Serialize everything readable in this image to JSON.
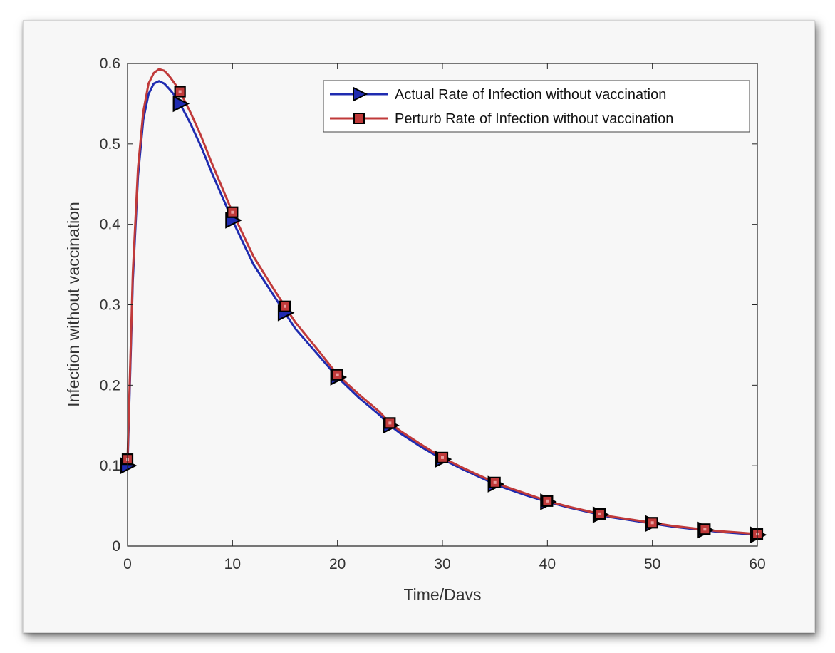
{
  "chart_data": {
    "type": "line",
    "title": "",
    "xlabel": "Time/Davs",
    "ylabel": "Infection without vaccination",
    "xlim": [
      0,
      60
    ],
    "ylim": [
      0,
      0.6
    ],
    "xticks": [
      0,
      10,
      20,
      30,
      40,
      50,
      60
    ],
    "yticks": [
      0,
      0.1,
      0.2,
      0.3,
      0.4,
      0.5,
      0.6
    ],
    "xtick_labels": [
      "0",
      "10",
      "20",
      "30",
      "40",
      "50",
      "60"
    ],
    "ytick_labels": [
      "0",
      "0.1",
      "0.2",
      "0.3",
      "0.4",
      "0.5",
      "0.6"
    ],
    "grid": false,
    "legend_position": "top-right",
    "x": [
      0,
      0.5,
      1,
      1.5,
      2,
      2.5,
      3,
      3.5,
      4,
      4.5,
      5,
      6,
      7,
      8,
      9,
      10,
      12,
      14,
      15,
      16,
      18,
      20,
      22,
      24,
      25,
      26,
      28,
      30,
      32,
      34,
      35,
      36,
      38,
      40,
      42,
      44,
      45,
      46,
      48,
      50,
      52,
      54,
      55,
      56,
      58,
      60
    ],
    "series": [
      {
        "name": "Actual Rate of Infection without vaccination",
        "color": "#1f2bb0",
        "marker": "triangle-right",
        "marker_x": [
          0,
          5,
          10,
          15,
          20,
          25,
          30,
          35,
          40,
          45,
          50,
          55,
          60
        ],
        "values": [
          0.1,
          0.33,
          0.46,
          0.53,
          0.562,
          0.575,
          0.578,
          0.575,
          0.568,
          0.56,
          0.55,
          0.525,
          0.497,
          0.465,
          0.435,
          0.405,
          0.35,
          0.31,
          0.29,
          0.27,
          0.24,
          0.21,
          0.185,
          0.163,
          0.15,
          0.14,
          0.123,
          0.108,
          0.095,
          0.083,
          0.077,
          0.072,
          0.063,
          0.055,
          0.048,
          0.042,
          0.039,
          0.036,
          0.032,
          0.028,
          0.024,
          0.021,
          0.02,
          0.018,
          0.016,
          0.014
        ]
      },
      {
        "name": "Perturb Rate of Infection without vaccination",
        "color": "#c03a3a",
        "marker": "square",
        "marker_x": [
          0,
          5,
          10,
          15,
          20,
          25,
          30,
          35,
          40,
          45,
          50,
          55,
          60
        ],
        "values": [
          0.108,
          0.34,
          0.47,
          0.54,
          0.575,
          0.588,
          0.593,
          0.591,
          0.584,
          0.575,
          0.565,
          0.539,
          0.51,
          0.477,
          0.446,
          0.415,
          0.36,
          0.318,
          0.298,
          0.278,
          0.246,
          0.213,
          0.189,
          0.167,
          0.153,
          0.143,
          0.126,
          0.11,
          0.097,
          0.085,
          0.079,
          0.074,
          0.065,
          0.056,
          0.049,
          0.043,
          0.04,
          0.037,
          0.033,
          0.029,
          0.025,
          0.022,
          0.021,
          0.019,
          0.017,
          0.015
        ]
      }
    ]
  }
}
